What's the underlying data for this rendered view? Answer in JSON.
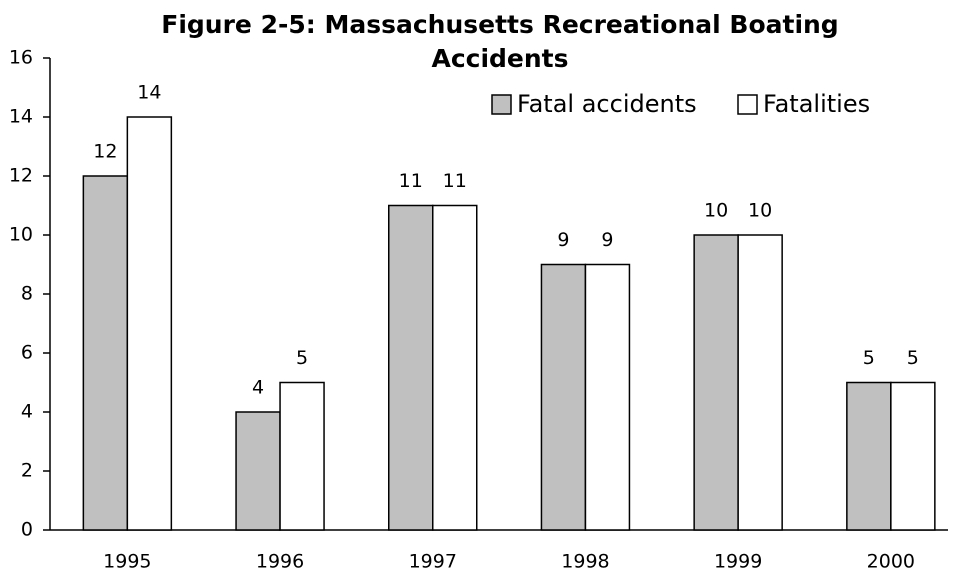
{
  "chart_data": {
    "type": "bar",
    "title": "Figure 2-5: Massachusetts Recreational Boating Accidents",
    "categories": [
      "1995",
      "1996",
      "1997",
      "1998",
      "1999",
      "2000"
    ],
    "series": [
      {
        "name": "Fatal accidents",
        "color": "#c0c0c0",
        "values": [
          12,
          4,
          11,
          9,
          10,
          5
        ]
      },
      {
        "name": "Fatalities",
        "color": "#ffffff",
        "values": [
          14,
          5,
          11,
          9,
          10,
          5
        ]
      }
    ],
    "ylim": [
      0,
      16
    ],
    "yticks": [
      0,
      2,
      4,
      6,
      8,
      10,
      12,
      14,
      16
    ],
    "grid": false,
    "legend": "top-right"
  }
}
